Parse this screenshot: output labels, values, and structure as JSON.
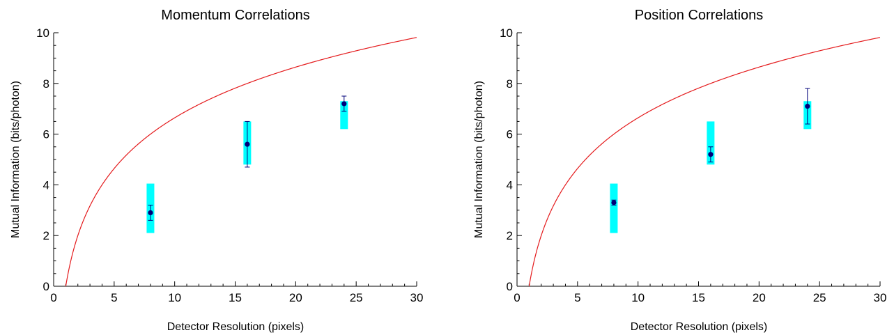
{
  "chart_data": [
    {
      "type": "scatter",
      "title": "Momentum Correlations",
      "xlabel": "Detector Resolution (pixels)",
      "ylabel": "Mutual Information (bits/photon)",
      "xlim": [
        0,
        30
      ],
      "ylim": [
        0,
        10
      ],
      "xticks": [
        0,
        5,
        10,
        15,
        20,
        25,
        30
      ],
      "yticks": [
        0,
        2,
        4,
        6,
        8,
        10
      ],
      "grid": false,
      "curve": {
        "name": "",
        "formula": "2*log2(x)",
        "color": "#e41a1c"
      },
      "series": [
        {
          "name": "",
          "x": [
            8,
            16,
            24
          ],
          "y": [
            2.9,
            5.6,
            7.2
          ],
          "y_err_low": [
            2.6,
            4.7,
            6.9
          ],
          "y_err_high": [
            3.2,
            6.5,
            7.5
          ],
          "band_low": [
            2.1,
            4.8,
            6.2
          ],
          "band_high": [
            4.05,
            6.5,
            7.3
          ],
          "color": "#00007a",
          "band_color": "#00ffff"
        }
      ]
    },
    {
      "type": "scatter",
      "title": "Position Correlations",
      "xlabel": "Detector Resolution (pixels)",
      "ylabel": "Mutual Information (bits/photon)",
      "xlim": [
        0,
        30
      ],
      "ylim": [
        0,
        10
      ],
      "xticks": [
        0,
        5,
        10,
        15,
        20,
        25,
        30
      ],
      "yticks": [
        0,
        2,
        4,
        6,
        8,
        10
      ],
      "grid": false,
      "curve": {
        "name": "",
        "formula": "2*log2(x)",
        "color": "#e41a1c"
      },
      "series": [
        {
          "name": "",
          "x": [
            8,
            16,
            24
          ],
          "y": [
            3.3,
            5.2,
            7.1
          ],
          "y_err_low": [
            3.2,
            4.9,
            6.4
          ],
          "y_err_high": [
            3.4,
            5.5,
            7.8
          ],
          "band_low": [
            2.1,
            4.8,
            6.2
          ],
          "band_high": [
            4.05,
            6.5,
            7.3
          ],
          "color": "#00007a",
          "band_color": "#00ffff"
        }
      ]
    }
  ]
}
